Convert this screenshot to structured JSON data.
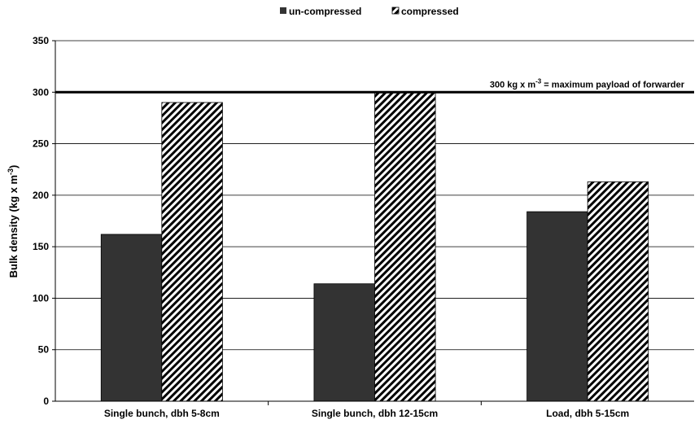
{
  "chart_data": {
    "type": "bar",
    "categories": [
      "Single bunch, dbh 5-8cm",
      "Single bunch, dbh 12-15cm",
      "Load, dbh 5-15cm"
    ],
    "series": [
      {
        "name": "un-compressed",
        "values": [
          162,
          114,
          184
        ],
        "color": "#333333",
        "pattern": "solid"
      },
      {
        "name": "compressed",
        "values": [
          290,
          300,
          213
        ],
        "color": "#000000",
        "pattern": "diagonal-hatch"
      }
    ],
    "ylabel": "Bulk density (kg x m",
    "ylabel_sup": "-3",
    "ylabel_end": ")",
    "ylim": [
      0,
      350
    ],
    "yticks": [
      0,
      50,
      100,
      150,
      200,
      250,
      300,
      350
    ],
    "grid": true,
    "legend_position": "top-center",
    "reference_line": {
      "value": 300,
      "label_prefix": "300 kg x m",
      "label_sup": "-3",
      "label_suffix": " = maximum payload of forwarder"
    }
  }
}
